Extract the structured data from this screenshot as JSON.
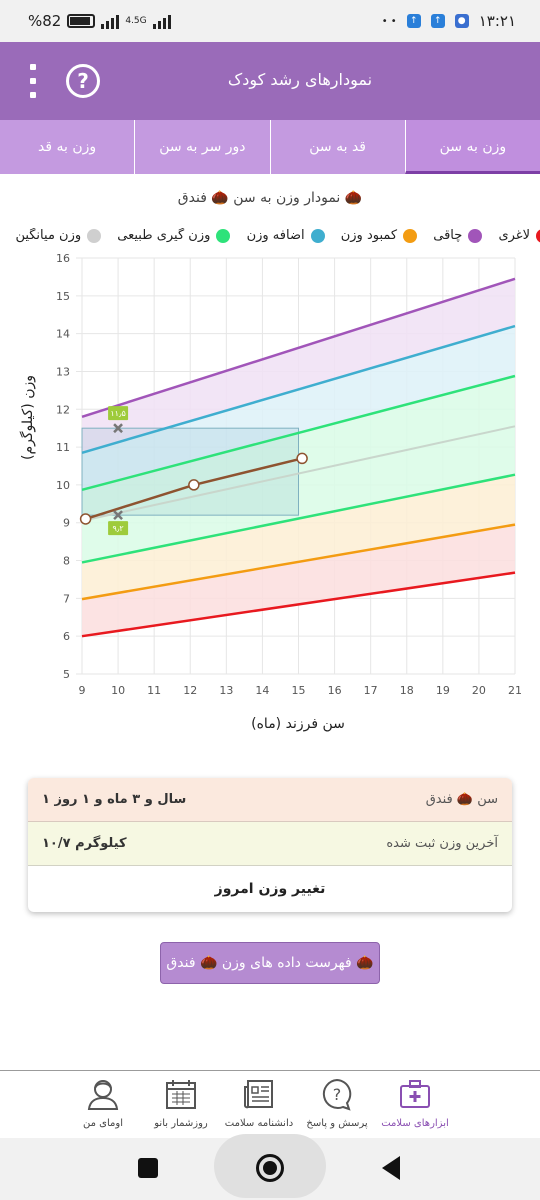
{
  "status_bar": {
    "battery_text": "%82",
    "network_label": "4.5G",
    "time": "۱۳:۲۱"
  },
  "app_bar": {
    "title": "نمودارهای رشد کودک",
    "help_glyph": "?"
  },
  "tabs": [
    {
      "label": "وزن به سن",
      "active": true
    },
    {
      "label": "قد به سن",
      "active": false
    },
    {
      "label": "دور سر به سن",
      "active": false
    },
    {
      "label": "وزن به قد",
      "active": false
    }
  ],
  "chart_title": "نمودار وزن به سن 🌰 فندق 🌰",
  "legend": [
    {
      "label": "لاغری",
      "color": "#e8191f"
    },
    {
      "label": "چاقی",
      "color": "#a155b9"
    },
    {
      "label": "کمبود وزن",
      "color": "#f39c12"
    },
    {
      "label": "اضافه وزن",
      "color": "#3faecf"
    },
    {
      "label": "وزن گیری طبیعی",
      "color": "#2ee27a"
    },
    {
      "label": "وزن میانگین",
      "color": "#cfcfcf"
    }
  ],
  "chart_data": {
    "type": "line",
    "xlabel": "سن فرزند (ماه)",
    "ylabel": "وزن (کیلوگرم)",
    "xlim": [
      9,
      21
    ],
    "ylim": [
      5,
      16
    ],
    "x_ticks": [
      9,
      10,
      11,
      12,
      13,
      14,
      15,
      16,
      17,
      18,
      19,
      20,
      21
    ],
    "y_ticks": [
      5,
      6,
      7,
      8,
      9,
      10,
      11,
      12,
      13,
      14,
      15,
      16
    ],
    "grid": true,
    "series": [
      {
        "name": "چاقی",
        "color": "#a155b9",
        "x": [
          9,
          21
        ],
        "y": [
          11.8,
          15.45
        ]
      },
      {
        "name": "اضافه وزن",
        "color": "#3faecf",
        "x": [
          9,
          21
        ],
        "y": [
          10.85,
          14.2
        ]
      },
      {
        "name": "وزن گیری طبیعی",
        "color": "#2ee27a",
        "x": [
          9,
          21
        ],
        "y": [
          9.87,
          12.88
        ]
      },
      {
        "name": "وزن میانگین",
        "color": "#c9d6cc",
        "x": [
          9,
          21
        ],
        "y": [
          9.05,
          11.55
        ]
      },
      {
        "name": "وزن گیری طبیعی",
        "color": "#2ee27a",
        "x": [
          9,
          21
        ],
        "y": [
          7.95,
          10.27
        ]
      },
      {
        "name": "کمبود وزن",
        "color": "#f39c12",
        "x": [
          9,
          21
        ],
        "y": [
          6.98,
          8.95
        ]
      },
      {
        "name": "لاغری",
        "color": "#e8191f",
        "x": [
          9,
          21
        ],
        "y": [
          6.0,
          7.68
        ]
      }
    ],
    "child_series": {
      "color": "#8e5330",
      "x": [
        9.1,
        12.1,
        15.1
      ],
      "y": [
        9.1,
        10.0,
        10.7
      ]
    },
    "markers": [
      {
        "label": "۱۱٫۵",
        "x": 10,
        "y": 11.5
      },
      {
        "label": "۹٫۲",
        "x": 10,
        "y": 9.2
      }
    ],
    "highlight_box": {
      "x": [
        9,
        15
      ],
      "y": [
        9.2,
        11.5
      ]
    }
  },
  "info_card": {
    "age_label": "سن 🌰 فندق",
    "age_value": "۱ سال و ۳ ماه و ۱ روز",
    "last_weight_label": "آخرین وزن ثبت شده",
    "last_weight_value": "۱۰/۷ کیلوگرم",
    "change_weight_label": "تغییر وزن امروز"
  },
  "list_button_label": "فهرست داده های وزن 🌰 فندق 🌰",
  "bottom_nav": [
    {
      "label": "ابزارهای سلامت",
      "icon": "first-aid-kit-icon",
      "active": true
    },
    {
      "label": "پرسش و پاسخ",
      "icon": "question-bubble-icon",
      "active": false
    },
    {
      "label": "دانشنامه سلامت",
      "icon": "newspaper-icon",
      "active": false
    },
    {
      "label": "روزشمار بانو",
      "icon": "calendar-icon",
      "active": false
    },
    {
      "label": "اومای من",
      "icon": "user-avatar-icon",
      "active": false
    }
  ]
}
